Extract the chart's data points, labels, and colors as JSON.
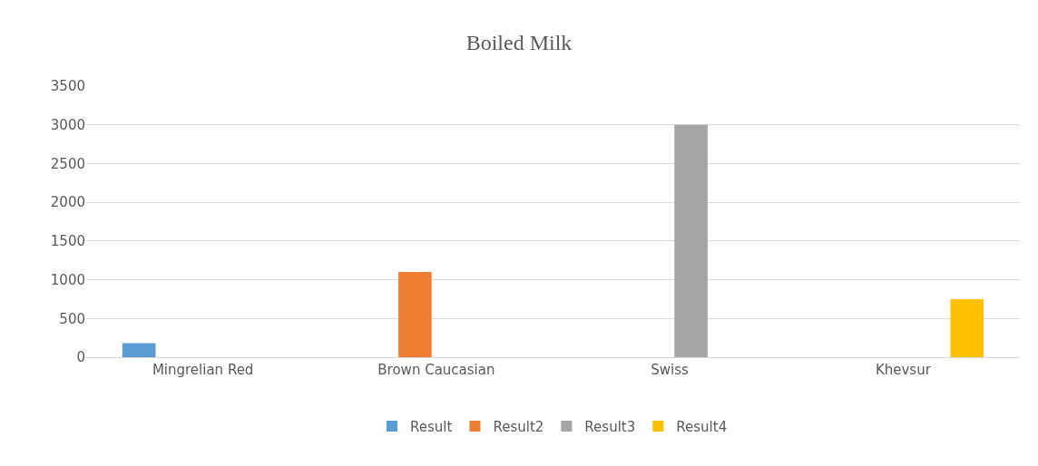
{
  "chart_data": {
    "type": "bar",
    "title": "Boiled Milk",
    "categories": [
      "Mingrelian Red",
      "Brown Caucasian",
      "Swiss",
      "Khevsur"
    ],
    "series": [
      {
        "name": "Result",
        "color": "#5b9bd5",
        "values": [
          180,
          null,
          null,
          null
        ]
      },
      {
        "name": "Result2",
        "color": "#ed7d31",
        "values": [
          null,
          1100,
          null,
          null
        ]
      },
      {
        "name": "Result3",
        "color": "#a5a5a5",
        "values": [
          null,
          null,
          3000,
          null
        ]
      },
      {
        "name": "Result4",
        "color": "#ffc000",
        "values": [
          null,
          null,
          null,
          750
        ]
      }
    ],
    "ylim": [
      0,
      3500
    ],
    "yticks": [
      0,
      500,
      1000,
      1500,
      2000,
      2500,
      3000,
      3500
    ],
    "grid": "y",
    "legend": "bottom"
  }
}
